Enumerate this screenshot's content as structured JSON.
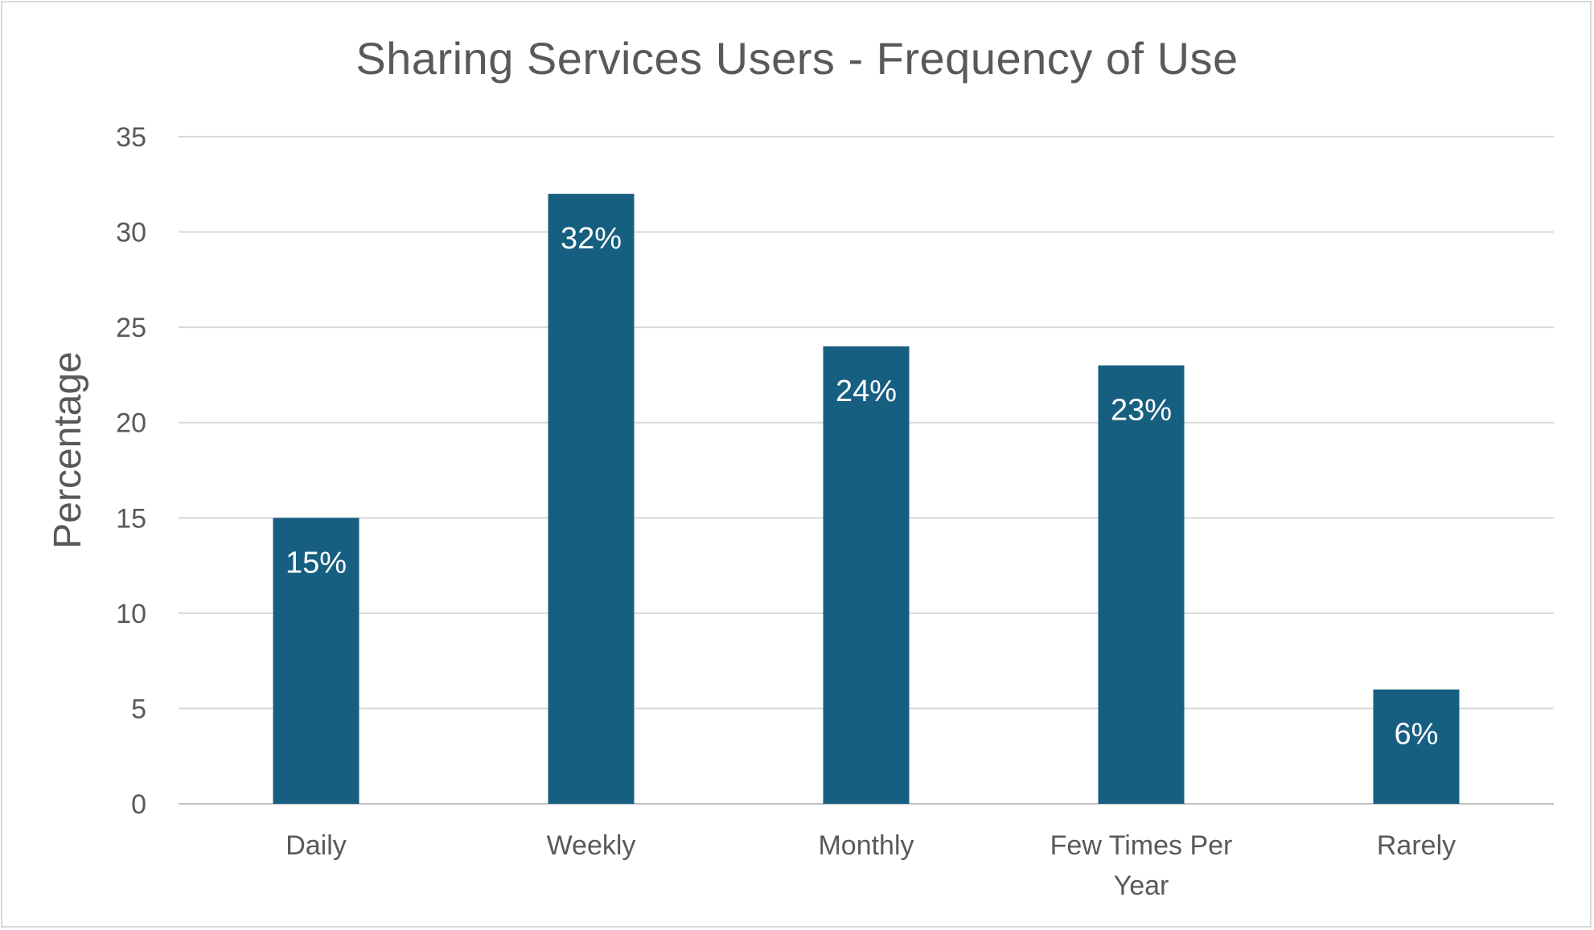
{
  "chart_data": {
    "type": "bar",
    "title": "Sharing Services Users - Frequency of Use",
    "xlabel": "",
    "ylabel": "Percentage",
    "categories": [
      "Daily",
      "Weekly",
      "Monthly",
      "Few Times Per Year",
      "Rarely"
    ],
    "category_lines": [
      [
        "Daily"
      ],
      [
        "Weekly"
      ],
      [
        "Monthly"
      ],
      [
        "Few Times Per",
        "Year"
      ],
      [
        "Rarely"
      ]
    ],
    "values": [
      15,
      32,
      24,
      23,
      6
    ],
    "data_labels": [
      "15%",
      "32%",
      "24%",
      "23%",
      "6%"
    ],
    "ylim": [
      0,
      35
    ],
    "yticks": [
      0,
      5,
      10,
      15,
      20,
      25,
      30,
      35
    ],
    "grid": true,
    "legend": "none",
    "bar_color": "#175f81"
  }
}
